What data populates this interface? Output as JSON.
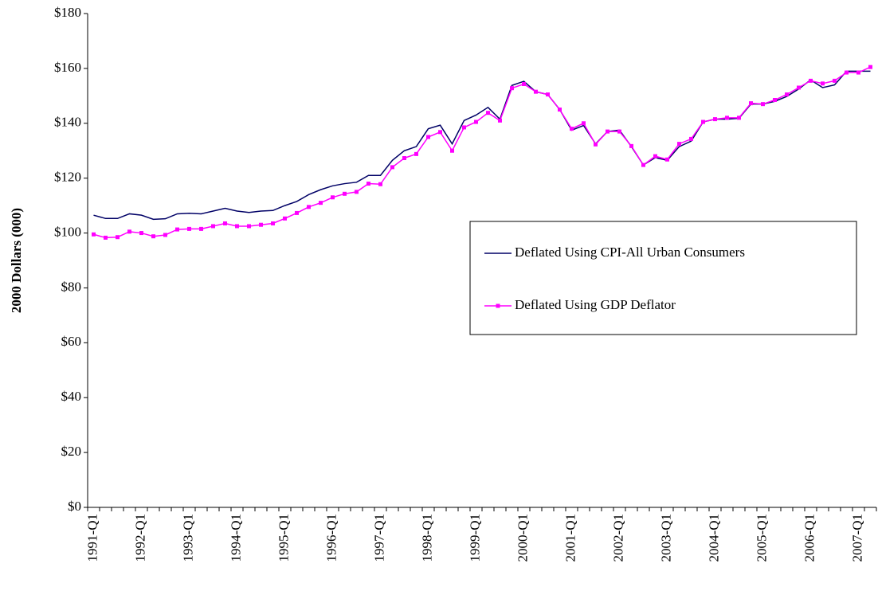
{
  "chart_data": {
    "type": "line",
    "y_label": "2000 Dollars (000)",
    "categories": [
      "1991-Q1",
      null,
      null,
      null,
      "1992-Q1",
      null,
      null,
      null,
      "1993-Q1",
      null,
      null,
      null,
      "1994-Q1",
      null,
      null,
      null,
      "1995-Q1",
      null,
      null,
      null,
      "1996-Q1",
      null,
      null,
      null,
      "1997-Q1",
      null,
      null,
      null,
      "1998-Q1",
      null,
      null,
      null,
      "1999-Q1",
      null,
      null,
      null,
      "2000-Q1",
      null,
      null,
      null,
      "2001-Q1",
      null,
      null,
      null,
      "2002-Q1",
      null,
      null,
      null,
      "2003-Q1",
      null,
      null,
      null,
      "2004-Q1",
      null,
      null,
      null,
      "2005-Q1",
      null,
      null,
      null,
      "2006-Q1",
      null,
      null,
      null,
      "2007-Q1",
      null
    ],
    "series": [
      {
        "name": "Deflated Using CPI-All Urban Consumers",
        "color": "#000066",
        "marker": "none",
        "values": [
          106.5,
          105.3,
          105.3,
          107.0,
          106.5,
          105.0,
          105.2,
          107.0,
          107.2,
          107.0,
          108.0,
          109.0,
          108.0,
          107.5,
          108.0,
          108.2,
          110.0,
          111.5,
          114.0,
          115.8,
          117.2,
          118.0,
          118.5,
          121.0,
          121.0,
          126.5,
          130.0,
          131.5,
          138.0,
          139.3,
          132.5,
          141.0,
          143.0,
          145.8,
          141.5,
          153.8,
          155.3,
          151.5,
          150.5,
          145.0,
          137.5,
          139.2,
          132.5,
          137.0,
          137.5,
          131.5,
          124.8,
          127.5,
          126.5,
          131.5,
          133.5,
          140.5,
          141.5,
          141.5,
          141.8,
          147.0,
          147.0,
          148.0,
          149.8,
          152.5,
          155.8,
          153.0,
          154.0,
          159.0,
          159.0,
          159.0
        ]
      },
      {
        "name": "Deflated Using GDP Deflator",
        "color": "#ff00ff",
        "marker": "square",
        "values": [
          99.5,
          98.3,
          98.5,
          100.5,
          100.0,
          98.8,
          99.3,
          101.3,
          101.5,
          101.5,
          102.5,
          103.5,
          102.5,
          102.5,
          103.0,
          103.5,
          105.3,
          107.3,
          109.5,
          111.0,
          113.0,
          114.3,
          115.0,
          118.0,
          117.8,
          124.0,
          127.3,
          128.8,
          135.0,
          136.8,
          130.0,
          138.5,
          140.5,
          143.8,
          141.0,
          152.8,
          154.3,
          151.5,
          150.5,
          145.0,
          138.0,
          140.0,
          132.3,
          137.0,
          137.0,
          131.7,
          124.8,
          128.0,
          126.8,
          132.5,
          134.3,
          140.5,
          141.5,
          142.0,
          142.0,
          147.3,
          147.0,
          148.5,
          150.5,
          153.0,
          155.5,
          154.5,
          155.5,
          158.5,
          158.5,
          160.5
        ]
      }
    ],
    "ylim": [
      0,
      180
    ],
    "yticks": [
      {
        "value": 0,
        "label": "$0"
      },
      {
        "value": 20,
        "label": "$20"
      },
      {
        "value": 40,
        "label": "$40"
      },
      {
        "value": 60,
        "label": "$60"
      },
      {
        "value": 80,
        "label": "$80"
      },
      {
        "value": 100,
        "label": "$100"
      },
      {
        "value": 120,
        "label": "$120"
      },
      {
        "value": 140,
        "label": "$140"
      },
      {
        "value": 160,
        "label": "$160"
      },
      {
        "value": 180,
        "label": "$180"
      }
    ],
    "grid": false,
    "legend": "right"
  }
}
